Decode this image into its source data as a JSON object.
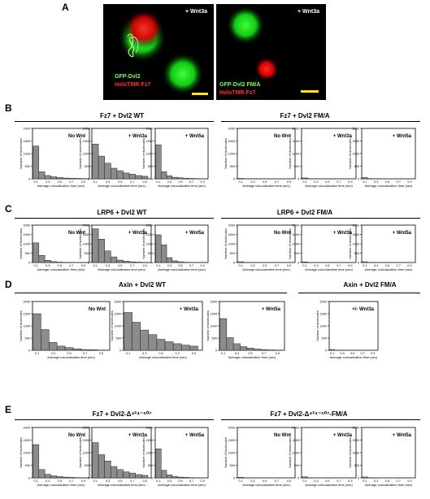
{
  "panels": {
    "A": {
      "letter": "A",
      "left_image": {
        "top_label": "+ Wnt3a",
        "green_label": "GFP-Dvl2",
        "red_label": "HaloTMR-Fz7"
      },
      "right_image": {
        "top_label": "+ Wnt3a",
        "green_label": "GFP-Dvl2 FM/A",
        "red_label": "HaloTMR-Fz7"
      }
    },
    "B": {
      "letter": "B",
      "left_title": "Fz7 + Dvl2 WT",
      "right_title": "Fz7 + Dvl2 FM/A"
    },
    "C": {
      "letter": "C",
      "left_title": "LRP6 + Dvl2 WT",
      "right_title": "LRP6 + Dvl2 FM/A"
    },
    "D": {
      "letter": "D",
      "left_title": "Axin + Dvl2 WT",
      "right_title": "Axin + Dvl2 FM/A"
    },
    "E": {
      "letter": "E",
      "left_title": "Fz7 + Dvl2-Δ⁴²⁴⁻⁵⁰⁷",
      "right_title": "Fz7 + Dvl2-Δ⁴²⁴⁻⁵⁰⁷-FM/A"
    }
  },
  "axis_text": {
    "ylabel": "Number of molecules",
    "xlabel": "Average colocalization time (sec)",
    "yticks": [
      "0",
      "500",
      "1000",
      "1500",
      "2000"
    ],
    "xticks": [
      "0.1",
      "0.3",
      "0.5",
      "0.7",
      "0.9"
    ]
  },
  "chart_data": [
    {
      "type": "bar",
      "panel": "B",
      "inset": "No Wnt",
      "x": [
        0.1,
        0.2,
        0.3,
        0.4,
        0.5,
        0.6,
        0.7,
        0.8,
        0.9
      ],
      "values": [
        1300,
        280,
        130,
        80,
        50,
        30,
        20,
        15,
        10
      ],
      "ylim": [
        0,
        2000
      ]
    },
    {
      "type": "bar",
      "panel": "B",
      "inset": "+ Wnt3a",
      "x": [
        0.1,
        0.2,
        0.3,
        0.4,
        0.5,
        0.6,
        0.7,
        0.8,
        0.9
      ],
      "values": [
        1380,
        900,
        620,
        420,
        320,
        230,
        180,
        130,
        100
      ],
      "ylim": [
        0,
        2000
      ]
    },
    {
      "type": "bar",
      "panel": "B",
      "inset": "+ Wnt5a",
      "x": [
        0.1,
        0.2,
        0.3,
        0.4,
        0.5,
        0.6,
        0.7,
        0.8,
        0.9
      ],
      "values": [
        1350,
        280,
        120,
        60,
        40,
        20,
        15,
        10,
        5
      ],
      "ylim": [
        0,
        2000
      ]
    },
    {
      "type": "bar",
      "panel": "B",
      "inset": "No Wnt",
      "x": [
        0.1,
        0.2,
        0.3,
        0.4,
        0.5,
        0.6,
        0.7,
        0.8,
        0.9
      ],
      "values": [
        15,
        5,
        2,
        0,
        0,
        0,
        0,
        0,
        0
      ],
      "ylim": [
        0,
        2000
      ]
    },
    {
      "type": "bar",
      "panel": "B",
      "inset": "+ Wnt3a",
      "x": [
        0.1,
        0.2,
        0.3,
        0.4,
        0.5,
        0.6,
        0.7,
        0.8,
        0.9
      ],
      "values": [
        35,
        8,
        3,
        0,
        0,
        0,
        0,
        0,
        0
      ],
      "ylim": [
        0,
        2000
      ]
    },
    {
      "type": "bar",
      "panel": "B",
      "inset": "+ Wnt5a",
      "x": [
        0.1,
        0.2,
        0.3,
        0.4,
        0.5,
        0.6,
        0.7,
        0.8,
        0.9
      ],
      "values": [
        50,
        10,
        4,
        0,
        0,
        0,
        0,
        0,
        0
      ],
      "ylim": [
        0,
        2000
      ]
    },
    {
      "type": "bar",
      "panel": "C",
      "inset": "No Wnt",
      "x": [
        0.1,
        0.2,
        0.3,
        0.4,
        0.5,
        0.6,
        0.7,
        0.8,
        0.9
      ],
      "values": [
        1050,
        380,
        120,
        50,
        20,
        10,
        5,
        0,
        0
      ],
      "ylim": [
        0,
        2000
      ]
    },
    {
      "type": "bar",
      "panel": "C",
      "inset": "+ Wnt3a",
      "x": [
        0.1,
        0.2,
        0.3,
        0.4,
        0.5,
        0.6,
        0.7,
        0.8,
        0.9
      ],
      "values": [
        1800,
        1250,
        620,
        300,
        130,
        70,
        35,
        20,
        10
      ],
      "ylim": [
        0,
        2000
      ]
    },
    {
      "type": "bar",
      "panel": "C",
      "inset": "+ Wnt5a",
      "x": [
        0.1,
        0.2,
        0.3,
        0.4,
        0.5,
        0.6,
        0.7,
        0.8,
        0.9
      ],
      "values": [
        1480,
        950,
        260,
        90,
        40,
        15,
        5,
        0,
        0
      ],
      "ylim": [
        0,
        2000
      ]
    },
    {
      "type": "bar",
      "panel": "C",
      "inset": "No Wnt",
      "x": [
        0.1,
        0.2,
        0.3,
        0.4,
        0.5,
        0.6,
        0.7,
        0.8,
        0.9
      ],
      "values": [
        40,
        5,
        0,
        0,
        0,
        0,
        0,
        0,
        0
      ],
      "ylim": [
        0,
        2000
      ]
    },
    {
      "type": "bar",
      "panel": "C",
      "inset": "+ Wnt3a",
      "x": [
        0.1,
        0.2,
        0.3,
        0.4,
        0.5,
        0.6,
        0.7,
        0.8,
        0.9
      ],
      "values": [
        35,
        5,
        0,
        0,
        0,
        0,
        0,
        0,
        0
      ],
      "ylim": [
        0,
        2000
      ]
    },
    {
      "type": "bar",
      "panel": "C",
      "inset": "+ Wnt5a",
      "x": [
        0.1,
        0.2,
        0.3,
        0.4,
        0.5,
        0.6,
        0.7,
        0.8,
        0.9
      ],
      "values": [
        40,
        5,
        0,
        0,
        0,
        0,
        0,
        0,
        0
      ],
      "ylim": [
        0,
        2000
      ]
    },
    {
      "type": "bar",
      "panel": "D",
      "inset": "No Wnt",
      "x": [
        0.1,
        0.2,
        0.3,
        0.4,
        0.5,
        0.6,
        0.7,
        0.8,
        0.9
      ],
      "values": [
        1500,
        850,
        320,
        170,
        110,
        60,
        30,
        20,
        10
      ],
      "ylim": [
        0,
        2000
      ]
    },
    {
      "type": "bar",
      "panel": "D",
      "inset": "+ Wnt3a",
      "x": [
        0.1,
        0.2,
        0.3,
        0.4,
        0.5,
        0.6,
        0.7,
        0.8,
        0.9
      ],
      "values": [
        1550,
        1150,
        830,
        640,
        450,
        350,
        270,
        210,
        170
      ],
      "ylim": [
        0,
        2000
      ]
    },
    {
      "type": "bar",
      "panel": "D",
      "inset": "+ Wnt5a",
      "x": [
        0.1,
        0.2,
        0.3,
        0.4,
        0.5,
        0.6,
        0.7,
        0.8,
        0.9
      ],
      "values": [
        1300,
        520,
        270,
        150,
        90,
        50,
        30,
        15,
        10
      ],
      "ylim": [
        0,
        2000
      ]
    },
    {
      "type": "bar",
      "panel": "D",
      "inset": "+/- Wnt3a",
      "x": [
        0.1,
        0.2,
        0.3,
        0.4,
        0.5,
        0.6,
        0.7,
        0.8,
        0.9
      ],
      "values": [
        30,
        5,
        0,
        0,
        0,
        0,
        0,
        0,
        0
      ],
      "ylim": [
        0,
        2000
      ]
    },
    {
      "type": "bar",
      "panel": "E",
      "inset": "No Wnt",
      "x": [
        0.1,
        0.2,
        0.3,
        0.4,
        0.5,
        0.6,
        0.7,
        0.8,
        0.9
      ],
      "values": [
        1320,
        330,
        140,
        80,
        50,
        30,
        20,
        10,
        5
      ],
      "ylim": [
        0,
        2000
      ]
    },
    {
      "type": "bar",
      "panel": "E",
      "inset": "+ Wnt3a",
      "x": [
        0.1,
        0.2,
        0.3,
        0.4,
        0.5,
        0.6,
        0.7,
        0.8,
        0.9
      ],
      "values": [
        1400,
        920,
        670,
        450,
        330,
        240,
        190,
        130,
        100
      ],
      "ylim": [
        0,
        2000
      ]
    },
    {
      "type": "bar",
      "panel": "E",
      "inset": "+ Wnt5a",
      "x": [
        0.1,
        0.2,
        0.3,
        0.4,
        0.5,
        0.6,
        0.7,
        0.8,
        0.9
      ],
      "values": [
        1150,
        300,
        120,
        60,
        30,
        20,
        10,
        5,
        0
      ],
      "ylim": [
        0,
        2000
      ]
    },
    {
      "type": "bar",
      "panel": "E",
      "inset": "No Wnt",
      "x": [
        0.1,
        0.2,
        0.3,
        0.4,
        0.5,
        0.6,
        0.7,
        0.8,
        0.9
      ],
      "values": [
        20,
        5,
        0,
        0,
        0,
        0,
        0,
        0,
        0
      ],
      "ylim": [
        0,
        2000
      ]
    },
    {
      "type": "bar",
      "panel": "E",
      "inset": "+ Wnt3a",
      "x": [
        0.1,
        0.2,
        0.3,
        0.4,
        0.5,
        0.6,
        0.7,
        0.8,
        0.9
      ],
      "values": [
        40,
        5,
        0,
        0,
        0,
        0,
        0,
        0,
        0
      ],
      "ylim": [
        0,
        2000
      ]
    },
    {
      "type": "bar",
      "panel": "E",
      "inset": "+ Wnt5a",
      "x": [
        0.1,
        0.2,
        0.3,
        0.4,
        0.5,
        0.6,
        0.7,
        0.8,
        0.9
      ],
      "values": [
        35,
        5,
        0,
        0,
        0,
        0,
        0,
        0,
        0
      ],
      "ylim": [
        0,
        2000
      ]
    }
  ]
}
